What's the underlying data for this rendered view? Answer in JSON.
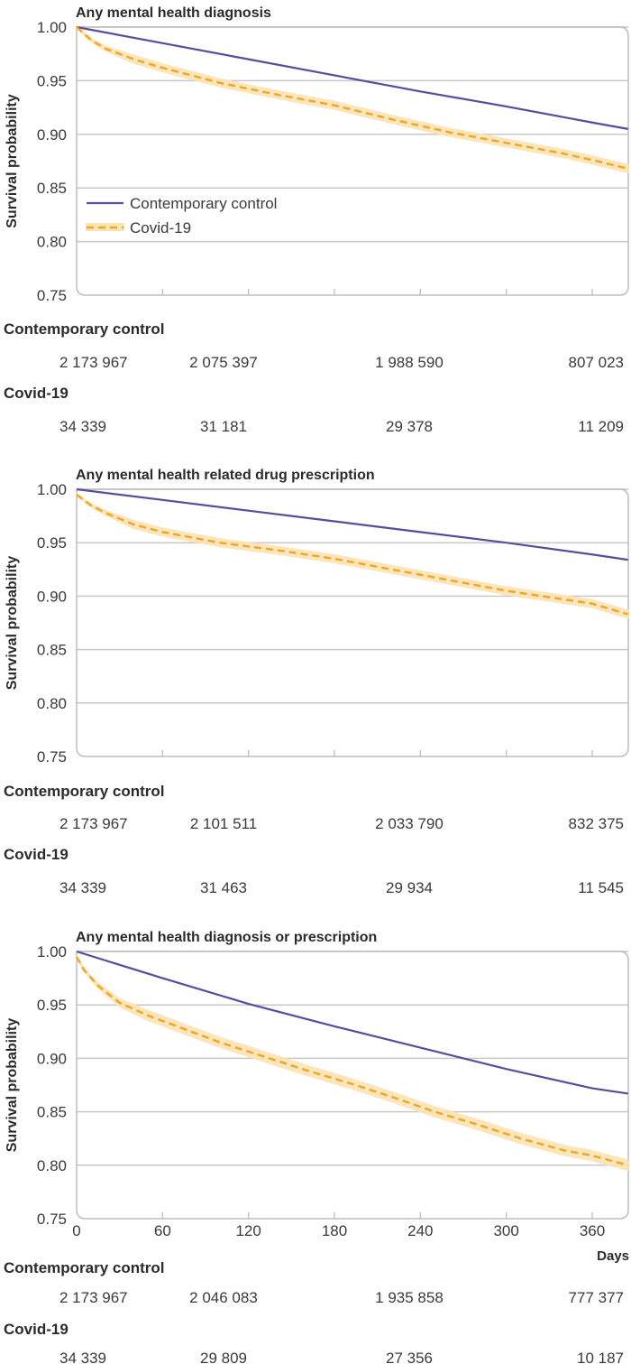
{
  "chart_data": [
    {
      "type": "line",
      "title": "Any mental health diagnosis",
      "xlabel": "",
      "ylabel": "Survival probability",
      "xlim": [
        0,
        385
      ],
      "ylim": [
        0.75,
        1.0
      ],
      "yticks": [
        "0.75",
        "0.80",
        "0.85",
        "0.90",
        "0.95",
        "1.00"
      ],
      "xticks": [
        0,
        60,
        120,
        180,
        240,
        300,
        360
      ],
      "xtick_labels_shown": false,
      "grid": true,
      "legend": {
        "placement": "lower-left",
        "entries": [
          "Contemporary control",
          "Covid-19"
        ]
      },
      "series": [
        {
          "name": "Contemporary control",
          "x": [
            0,
            60,
            120,
            180,
            240,
            300,
            360,
            385
          ],
          "y": [
            1.0,
            0.985,
            0.97,
            0.955,
            0.94,
            0.926,
            0.911,
            0.905
          ]
        },
        {
          "name": "Covid-19",
          "x": [
            0,
            10,
            20,
            40,
            60,
            100,
            140,
            180,
            220,
            260,
            300,
            340,
            360,
            385
          ],
          "y": [
            1.0,
            0.988,
            0.98,
            0.97,
            0.962,
            0.948,
            0.937,
            0.927,
            0.914,
            0.902,
            0.892,
            0.882,
            0.876,
            0.868
          ],
          "ci_halfwidth": 0.003
        }
      ],
      "risk_table": {
        "groups": [
          {
            "name": "Contemporary control",
            "values": [
              "2 173 967",
              "2 075 397",
              "1 988 590",
              "807 023"
            ]
          },
          {
            "name": "Covid-19",
            "values": [
              "34 339",
              "31 181",
              "29 378",
              "11 209"
            ]
          }
        ]
      }
    },
    {
      "type": "line",
      "title": "Any mental health related drug prescription",
      "xlabel": "",
      "ylabel": "Survival probability",
      "xlim": [
        0,
        385
      ],
      "ylim": [
        0.75,
        1.0
      ],
      "yticks": [
        "0.75",
        "0.80",
        "0.85",
        "0.90",
        "0.95",
        "1.00"
      ],
      "xticks": [
        0,
        60,
        120,
        180,
        240,
        300,
        360
      ],
      "xtick_labels_shown": false,
      "grid": true,
      "series": [
        {
          "name": "Contemporary control",
          "x": [
            0,
            60,
            120,
            180,
            240,
            300,
            360,
            385
          ],
          "y": [
            1.0,
            0.99,
            0.98,
            0.97,
            0.96,
            0.95,
            0.939,
            0.934
          ]
        },
        {
          "name": "Covid-19",
          "x": [
            0,
            10,
            20,
            40,
            60,
            100,
            140,
            180,
            220,
            260,
            300,
            340,
            360,
            385
          ],
          "y": [
            0.995,
            0.985,
            0.978,
            0.967,
            0.96,
            0.95,
            0.943,
            0.935,
            0.925,
            0.915,
            0.905,
            0.897,
            0.893,
            0.883
          ],
          "ci_halfwidth": 0.003
        }
      ],
      "risk_table": {
        "groups": [
          {
            "name": "Contemporary control",
            "values": [
              "2 173 967",
              "2 101 511",
              "2 033 790",
              "832 375"
            ]
          },
          {
            "name": "Covid-19",
            "values": [
              "34 339",
              "31 463",
              "29 934",
              "11 545"
            ]
          }
        ]
      }
    },
    {
      "type": "line",
      "title": "Any mental health diagnosis or prescription",
      "xlabel": "Days",
      "ylabel": "Survival probability",
      "xlim": [
        0,
        385
      ],
      "ylim": [
        0.75,
        1.0
      ],
      "yticks": [
        "0.75",
        "0.80",
        "0.85",
        "0.90",
        "0.95",
        "1.00"
      ],
      "xticks": [
        0,
        60,
        120,
        180,
        240,
        300,
        360
      ],
      "xtick_labels": [
        "0",
        "60",
        "120",
        "180",
        "240",
        "300",
        "360"
      ],
      "xtick_labels_shown": true,
      "grid": true,
      "series": [
        {
          "name": "Contemporary control",
          "x": [
            0,
            60,
            120,
            180,
            240,
            300,
            360,
            385
          ],
          "y": [
            1.0,
            0.975,
            0.951,
            0.93,
            0.91,
            0.89,
            0.872,
            0.867
          ]
        },
        {
          "name": "Covid-19",
          "x": [
            0,
            5,
            15,
            30,
            50,
            70,
            100,
            130,
            160,
            190,
            220,
            250,
            280,
            310,
            340,
            360,
            385
          ],
          "y": [
            0.995,
            0.983,
            0.968,
            0.952,
            0.94,
            0.93,
            0.915,
            0.902,
            0.889,
            0.877,
            0.864,
            0.85,
            0.838,
            0.825,
            0.814,
            0.809,
            0.8
          ],
          "ci_halfwidth": 0.004
        }
      ],
      "risk_table": {
        "groups": [
          {
            "name": "Contemporary control",
            "values": [
              "2 173 967",
              "2 046 083",
              "1 935 858",
              "777 377"
            ]
          },
          {
            "name": "Covid-19",
            "values": [
              "34 339",
              "29 809",
              "27 356",
              "10 187"
            ]
          }
        ]
      }
    }
  ],
  "colors": {
    "control": "#5b4a9e",
    "covid": "#f0a623",
    "covid_ci": "#fbe3b4",
    "grid": "#c8c8c8",
    "frame": "#bdbdbd"
  }
}
